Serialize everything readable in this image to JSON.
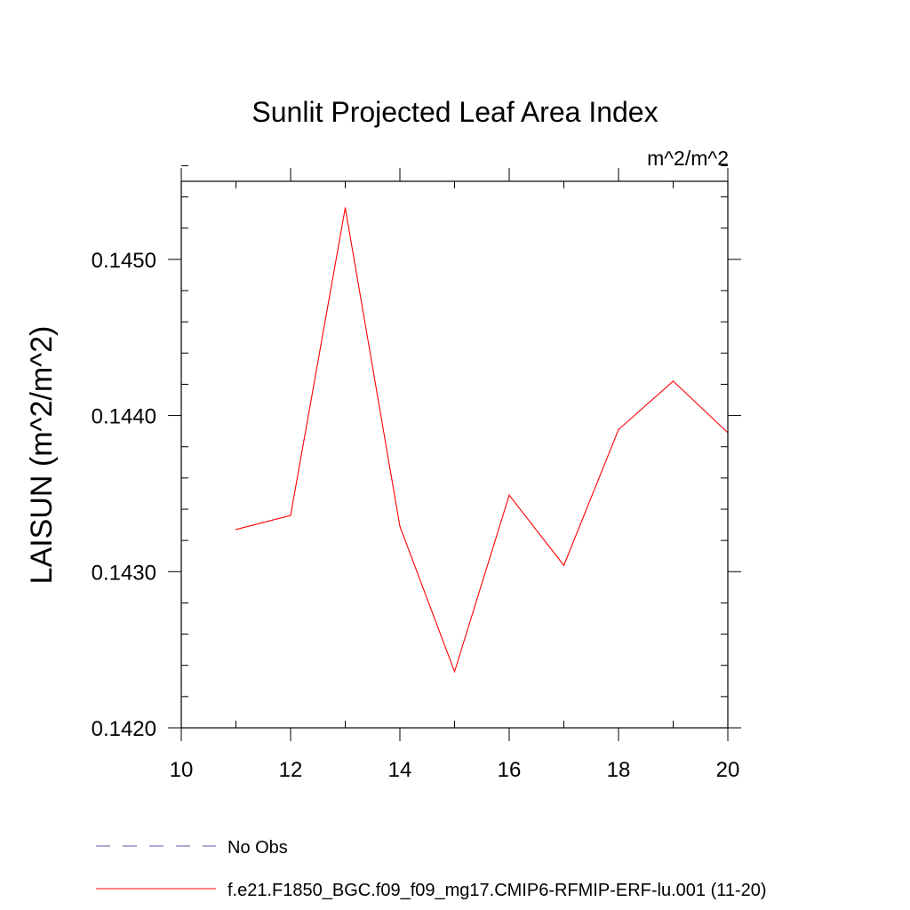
{
  "chart_data": {
    "type": "line",
    "title": "Sunlit Projected Leaf Area Index",
    "units_label": "m^2/m^2",
    "ylabel": "LAISUN  (m^2/m^2)",
    "xlabel": "",
    "xlim": [
      10,
      20
    ],
    "ylim": [
      0.142,
      0.1455
    ],
    "x_ticks": [
      10,
      12,
      14,
      16,
      18,
      20
    ],
    "x_tick_labels": [
      "10",
      "12",
      "14",
      "16",
      "18",
      "20"
    ],
    "y_ticks": [
      0.142,
      0.143,
      0.144,
      0.145
    ],
    "y_tick_labels": [
      "0.1420",
      "0.1430",
      "0.1440",
      "0.1450"
    ],
    "grid": false,
    "legend_position": "bottom",
    "series": [
      {
        "name": "No Obs",
        "color": "#5a5aa8",
        "dash": "dashed",
        "x": [],
        "values": []
      },
      {
        "name": "f.e21.F1850_BGC.f09_f09_mg17.CMIP6-RFMIP-ERF-lu.001 (11-20)",
        "color": "#ff0000",
        "dash": "solid",
        "x": [
          11,
          12,
          13,
          14,
          15,
          16,
          17,
          18,
          19,
          20
        ],
        "values": [
          0.14327,
          0.14336,
          0.14533,
          0.14329,
          0.14236,
          0.14349,
          0.14304,
          0.14391,
          0.14422,
          0.14389
        ]
      }
    ]
  }
}
